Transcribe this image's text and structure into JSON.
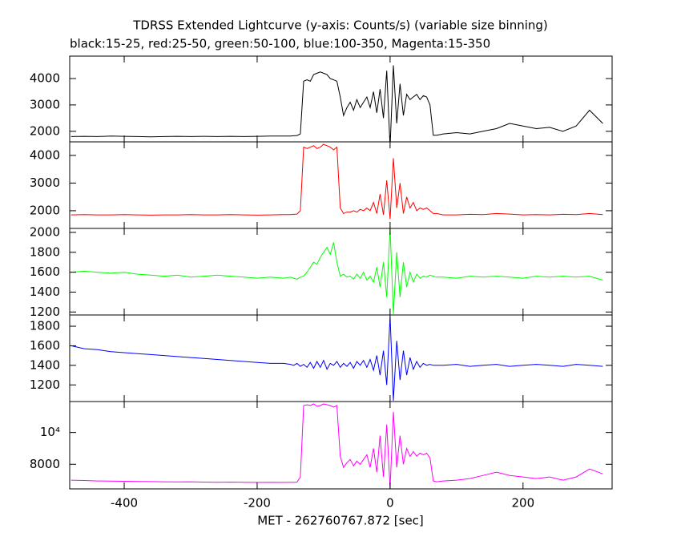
{
  "chart_data": [
    {
      "type": "line",
      "title": "TDRSS Extended Lightcurve (y-axis: Counts/s) (variable size binning)",
      "subtitle": "black:15-25, red:25-50, green:50-100, blue:100-350, Magenta:15-350",
      "x": [
        -480,
        -460,
        -440,
        -420,
        -400,
        -380,
        -360,
        -340,
        -320,
        -300,
        -280,
        -260,
        -240,
        -220,
        -200,
        -180,
        -160,
        -150,
        -145,
        -140,
        -135,
        -130,
        -125,
        -120,
        -115,
        -110,
        -105,
        -100,
        -95,
        -90,
        -85,
        -80,
        -75,
        -70,
        -65,
        -60,
        -55,
        -50,
        -45,
        -40,
        -35,
        -30,
        -25,
        -20,
        -15,
        -10,
        -5,
        0,
        5,
        10,
        15,
        20,
        25,
        30,
        35,
        40,
        45,
        50,
        55,
        60,
        65,
        70,
        80,
        100,
        120,
        140,
        160,
        180,
        200,
        220,
        240,
        260,
        280,
        300,
        320
      ],
      "series": [
        {
          "color": "#000000",
          "values": [
            1800,
            1810,
            1800,
            1820,
            1810,
            1800,
            1790,
            1800,
            1810,
            1800,
            1810,
            1800,
            1810,
            1800,
            1810,
            1820,
            1820,
            1820,
            1830,
            1840,
            1900,
            3900,
            3950,
            3900,
            4150,
            4200,
            4250,
            4200,
            4150,
            4000,
            3950,
            3900,
            3300,
            2600,
            2900,
            3100,
            2800,
            3200,
            2900,
            3100,
            3300,
            2900,
            3500,
            2700,
            3600,
            2500,
            4300,
            1400,
            4500,
            2300,
            3800,
            2600,
            3400,
            3200,
            3300,
            3400,
            3200,
            3350,
            3300,
            3000,
            1850,
            1850,
            1900,
            1950,
            1900,
            2000,
            2100,
            2300,
            2200,
            2100,
            2150,
            2000,
            2200,
            2800,
            2300
          ]
        }
      ],
      "xlim": [
        -482,
        334
      ],
      "ylim": [
        1600,
        4850
      ],
      "yticks": [
        2000,
        3000,
        4000
      ],
      "xticks": [
        -400,
        -200,
        0,
        200
      ]
    },
    {
      "type": "line",
      "x": [
        -480,
        -460,
        -440,
        -420,
        -400,
        -380,
        -360,
        -340,
        -320,
        -300,
        -280,
        -260,
        -240,
        -220,
        -200,
        -180,
        -160,
        -150,
        -145,
        -140,
        -135,
        -130,
        -125,
        -120,
        -115,
        -110,
        -105,
        -100,
        -95,
        -90,
        -85,
        -80,
        -75,
        -70,
        -65,
        -60,
        -55,
        -50,
        -45,
        -40,
        -35,
        -30,
        -25,
        -20,
        -15,
        -10,
        -5,
        0,
        5,
        10,
        15,
        20,
        25,
        30,
        35,
        40,
        45,
        50,
        55,
        60,
        65,
        70,
        80,
        100,
        120,
        140,
        160,
        180,
        200,
        220,
        240,
        260,
        280,
        300,
        320
      ],
      "series": [
        {
          "color": "#ff0000",
          "values": [
            1850,
            1860,
            1850,
            1850,
            1860,
            1850,
            1840,
            1850,
            1850,
            1860,
            1850,
            1850,
            1860,
            1850,
            1840,
            1850,
            1860,
            1860,
            1870,
            1880,
            2000,
            4300,
            4250,
            4300,
            4350,
            4250,
            4300,
            4400,
            4350,
            4300,
            4200,
            4300,
            2100,
            1900,
            1950,
            1950,
            2000,
            1950,
            2050,
            2000,
            2100,
            2000,
            2300,
            1900,
            2600,
            1850,
            3100,
            1700,
            3900,
            2100,
            3000,
            1900,
            2500,
            2100,
            2300,
            2000,
            2100,
            2050,
            2100,
            2000,
            1900,
            1900,
            1850,
            1850,
            1870,
            1860,
            1900,
            1880,
            1850,
            1860,
            1850,
            1870,
            1860,
            1900,
            1860
          ]
        }
      ],
      "xlim": [
        -482,
        334
      ],
      "ylim": [
        1360,
        4490
      ],
      "yticks": [
        2000,
        3000,
        4000
      ],
      "xticks": [
        -400,
        -200,
        0,
        200
      ]
    },
    {
      "type": "line",
      "x": [
        -480,
        -460,
        -440,
        -420,
        -400,
        -380,
        -360,
        -340,
        -320,
        -300,
        -280,
        -260,
        -240,
        -220,
        -200,
        -180,
        -160,
        -150,
        -145,
        -140,
        -135,
        -130,
        -125,
        -120,
        -115,
        -110,
        -105,
        -100,
        -95,
        -90,
        -85,
        -80,
        -75,
        -70,
        -65,
        -60,
        -55,
        -50,
        -45,
        -40,
        -35,
        -30,
        -25,
        -20,
        -15,
        -10,
        -5,
        0,
        5,
        10,
        15,
        20,
        25,
        30,
        35,
        40,
        45,
        50,
        55,
        60,
        65,
        70,
        80,
        100,
        120,
        140,
        160,
        180,
        200,
        220,
        240,
        260,
        280,
        300,
        320
      ],
      "series": [
        {
          "color": "#00ff00",
          "values": [
            1600,
            1610,
            1600,
            1590,
            1600,
            1580,
            1570,
            1560,
            1570,
            1550,
            1560,
            1570,
            1560,
            1550,
            1540,
            1550,
            1540,
            1550,
            1540,
            1530,
            1550,
            1560,
            1600,
            1650,
            1700,
            1680,
            1750,
            1800,
            1850,
            1780,
            1900,
            1700,
            1560,
            1580,
            1550,
            1560,
            1530,
            1580,
            1540,
            1600,
            1520,
            1560,
            1500,
            1650,
            1450,
            1700,
            1350,
            2040,
            1180,
            1800,
            1350,
            1700,
            1450,
            1600,
            1500,
            1580,
            1540,
            1560,
            1550,
            1570,
            1560,
            1550,
            1550,
            1540,
            1560,
            1550,
            1560,
            1550,
            1540,
            1560,
            1550,
            1560,
            1550,
            1560,
            1520
          ]
        }
      ],
      "xlim": [
        -482,
        334
      ],
      "ylim": [
        1170,
        2040
      ],
      "yticks": [
        1200,
        1400,
        1600,
        1800,
        2000
      ],
      "xticks": [
        -400,
        -200,
        0,
        200
      ]
    },
    {
      "type": "line",
      "x": [
        -480,
        -460,
        -440,
        -420,
        -400,
        -380,
        -360,
        -340,
        -320,
        -300,
        -280,
        -260,
        -240,
        -220,
        -200,
        -180,
        -160,
        -150,
        -145,
        -140,
        -135,
        -130,
        -125,
        -120,
        -115,
        -110,
        -105,
        -100,
        -95,
        -90,
        -85,
        -80,
        -75,
        -70,
        -65,
        -60,
        -55,
        -50,
        -45,
        -40,
        -35,
        -30,
        -25,
        -20,
        -15,
        -10,
        -5,
        0,
        5,
        10,
        15,
        20,
        25,
        30,
        35,
        40,
        45,
        50,
        55,
        60,
        65,
        70,
        80,
        100,
        120,
        140,
        160,
        180,
        200,
        220,
        240,
        260,
        280,
        300,
        320
      ],
      "series": [
        {
          "color": "#0000ff",
          "values": [
            1600,
            1570,
            1560,
            1540,
            1530,
            1520,
            1510,
            1500,
            1490,
            1480,
            1470,
            1460,
            1450,
            1440,
            1430,
            1420,
            1420,
            1410,
            1400,
            1420,
            1390,
            1410,
            1380,
            1430,
            1370,
            1440,
            1380,
            1450,
            1360,
            1420,
            1400,
            1440,
            1380,
            1420,
            1390,
            1430,
            1370,
            1440,
            1400,
            1450,
            1380,
            1460,
            1350,
            1500,
            1300,
            1550,
            1200,
            1900,
            1040,
            1650,
            1250,
            1550,
            1300,
            1480,
            1360,
            1440,
            1380,
            1420,
            1400,
            1410,
            1400,
            1400,
            1400,
            1410,
            1390,
            1400,
            1410,
            1390,
            1400,
            1410,
            1400,
            1390,
            1410,
            1400,
            1390
          ]
        }
      ],
      "xlim": [
        -482,
        334
      ],
      "ylim": [
        1030,
        1915
      ],
      "yticks": [
        1200,
        1400,
        1600,
        1800
      ],
      "xticks": [
        -400,
        -200,
        0,
        200
      ]
    },
    {
      "type": "line",
      "xlabel": "MET - 262760767.872 [sec]",
      "x": [
        -480,
        -460,
        -440,
        -420,
        -400,
        -380,
        -360,
        -340,
        -320,
        -300,
        -280,
        -260,
        -240,
        -220,
        -200,
        -180,
        -160,
        -150,
        -145,
        -140,
        -135,
        -130,
        -125,
        -120,
        -115,
        -110,
        -105,
        -100,
        -95,
        -90,
        -85,
        -80,
        -75,
        -70,
        -65,
        -60,
        -55,
        -50,
        -45,
        -40,
        -35,
        -30,
        -25,
        -20,
        -15,
        -10,
        -5,
        0,
        5,
        10,
        15,
        20,
        25,
        30,
        35,
        40,
        45,
        50,
        55,
        60,
        65,
        70,
        80,
        100,
        120,
        140,
        160,
        180,
        200,
        220,
        240,
        260,
        280,
        300,
        320
      ],
      "series": [
        {
          "color": "#ff00ff",
          "values": [
            7000,
            6980,
            6950,
            6940,
            6930,
            6920,
            6910,
            6900,
            6890,
            6900,
            6880,
            6870,
            6880,
            6870,
            6860,
            6870,
            6860,
            6870,
            6870,
            6880,
            7200,
            11700,
            11750,
            11700,
            11800,
            11650,
            11700,
            11800,
            11750,
            11700,
            11600,
            11700,
            8500,
            7800,
            8100,
            8300,
            7900,
            8200,
            8000,
            8300,
            8600,
            7800,
            9000,
            7500,
            9800,
            7200,
            10500,
            6500,
            11300,
            7800,
            9800,
            8000,
            9000,
            8500,
            8800,
            8500,
            8700,
            8600,
            8700,
            8400,
            6950,
            6900,
            6950,
            7000,
            7100,
            7300,
            7500,
            7300,
            7200,
            7100,
            7200,
            7000,
            7200,
            7700,
            7400
          ]
        }
      ],
      "xlim": [
        -482,
        334
      ],
      "ylim": [
        6450,
        11950
      ],
      "yticks": [
        8000,
        {
          "value": 10000,
          "label": "10⁴"
        }
      ],
      "xticks": [
        -400,
        -200,
        0,
        200
      ]
    }
  ]
}
